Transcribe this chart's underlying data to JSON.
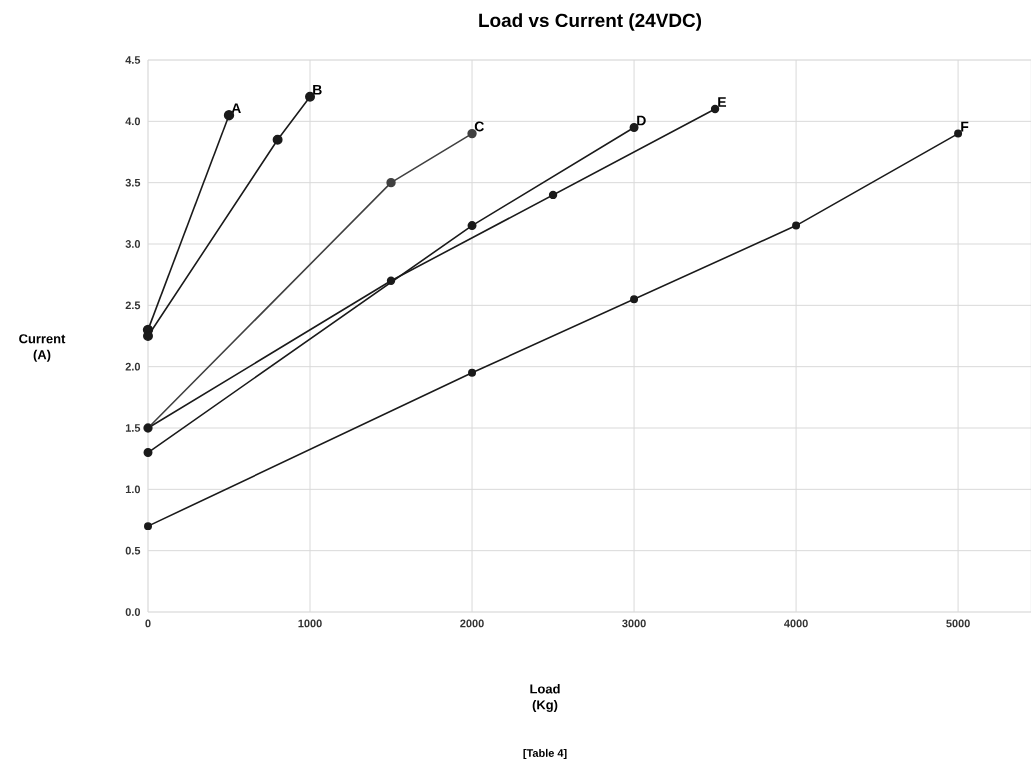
{
  "chart_data": {
    "type": "line",
    "title": "Load vs Current (24VDC)",
    "xlabel": "Load (Kg)",
    "ylabel": "Current (A)",
    "annotations": [
      "[Table 4]"
    ],
    "xlim": [
      0,
      5450
    ],
    "ylim": [
      0,
      4.5
    ],
    "xticks": [
      0,
      1000,
      2000,
      3000,
      4000,
      5000
    ],
    "yticks": [
      {
        "value": 0,
        "label": "0.0"
      },
      {
        "value": 0.5,
        "label": "0.5"
      },
      {
        "value": 1,
        "label": "1.0"
      },
      {
        "value": 1.5,
        "label": "1.5"
      },
      {
        "value": 2,
        "label": "2.0"
      },
      {
        "value": 2.5,
        "label": "2.5"
      },
      {
        "value": 3,
        "label": "3.0"
      },
      {
        "value": 3.5,
        "label": "3.5"
      },
      {
        "value": 4,
        "label": "4.0"
      },
      {
        "value": 4.5,
        "label": "4.5"
      }
    ],
    "grid": true,
    "marker": "circle",
    "series": [
      {
        "name": "A",
        "color": "#1a1a1a",
        "x": [
          0,
          500
        ],
        "values": [
          2.3,
          4.05
        ]
      },
      {
        "name": "B",
        "color": "#1a1a1a",
        "x": [
          0,
          800,
          1000
        ],
        "values": [
          2.25,
          3.85,
          4.2
        ]
      },
      {
        "name": "C",
        "color": "#404040",
        "x": [
          0,
          1500,
          2000
        ],
        "values": [
          1.5,
          3.5,
          3.9
        ]
      },
      {
        "name": "D",
        "color": "#1a1a1a",
        "x": [
          0,
          2000,
          3000
        ],
        "values": [
          1.3,
          3.15,
          3.95
        ]
      },
      {
        "name": "E",
        "color": "#1a1a1a",
        "x": [
          0,
          1500,
          2500,
          3500
        ],
        "values": [
          1.5,
          2.7,
          3.4,
          4.1
        ]
      },
      {
        "name": "F",
        "color": "#1a1a1a",
        "x": [
          0,
          2000,
          3000,
          4000,
          5000
        ],
        "values": [
          0.7,
          1.95,
          2.55,
          3.15,
          3.9
        ]
      }
    ]
  }
}
